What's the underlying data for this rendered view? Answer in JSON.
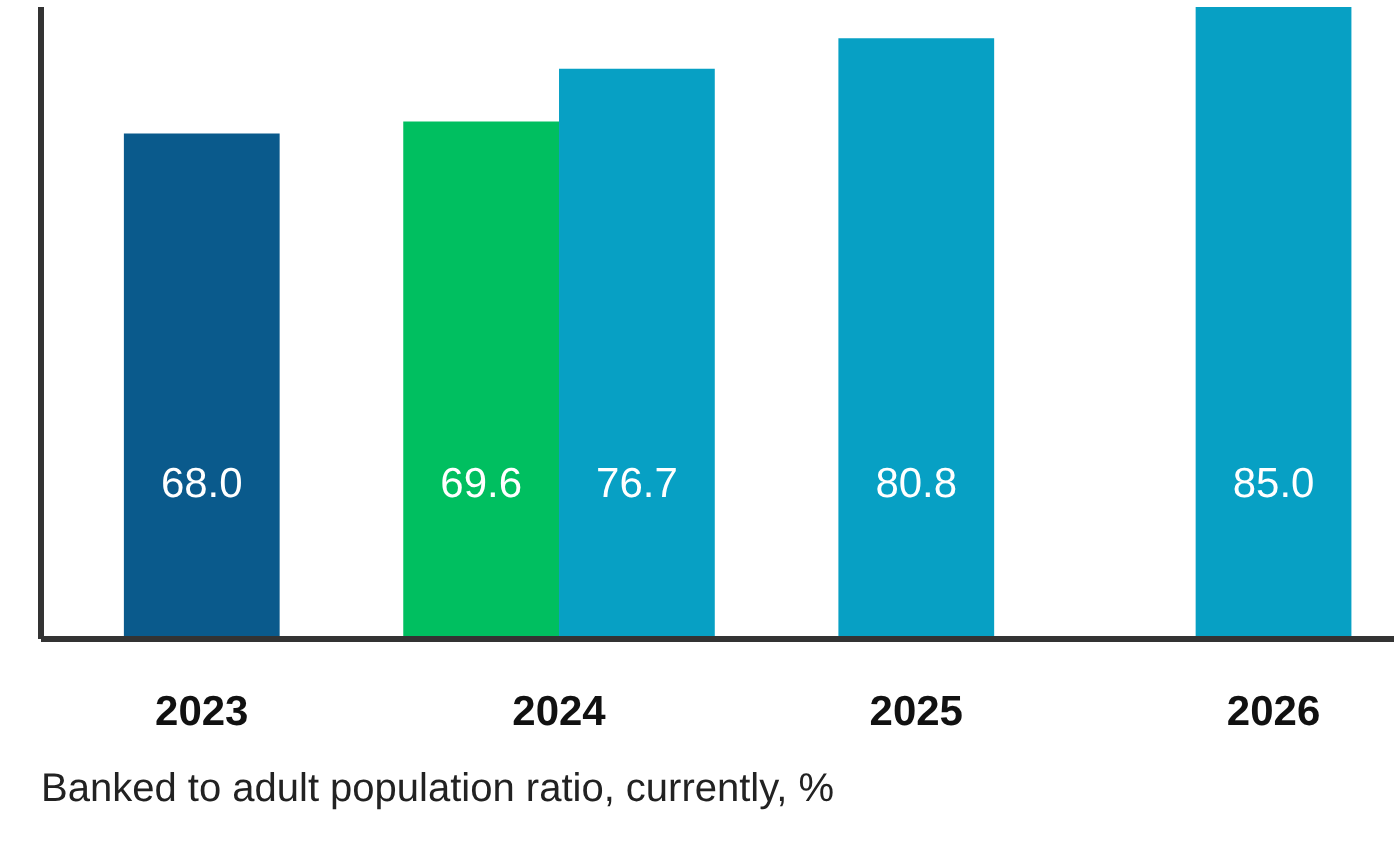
{
  "chart_data": {
    "type": "bar",
    "categories": [
      "2023",
      "2024",
      "2025",
      "2026"
    ],
    "series": [
      {
        "color": "#0a5a8c",
        "values": [
          68.0,
          null,
          null,
          null
        ],
        "value_labels": [
          "68.0",
          null,
          null,
          null
        ]
      },
      {
        "color": "#00bf60",
        "values": [
          null,
          69.6,
          null,
          null
        ],
        "value_labels": [
          null,
          "69.6",
          null,
          null
        ]
      },
      {
        "color": "#07a0c4",
        "values": [
          null,
          76.7,
          80.8,
          85.0
        ],
        "value_labels": [
          null,
          "76.7",
          "80.8",
          "85.0"
        ]
      }
    ],
    "annotations": [
      "Banked to adult population ratio, currently, %"
    ],
    "tick_labels": "x"
  }
}
